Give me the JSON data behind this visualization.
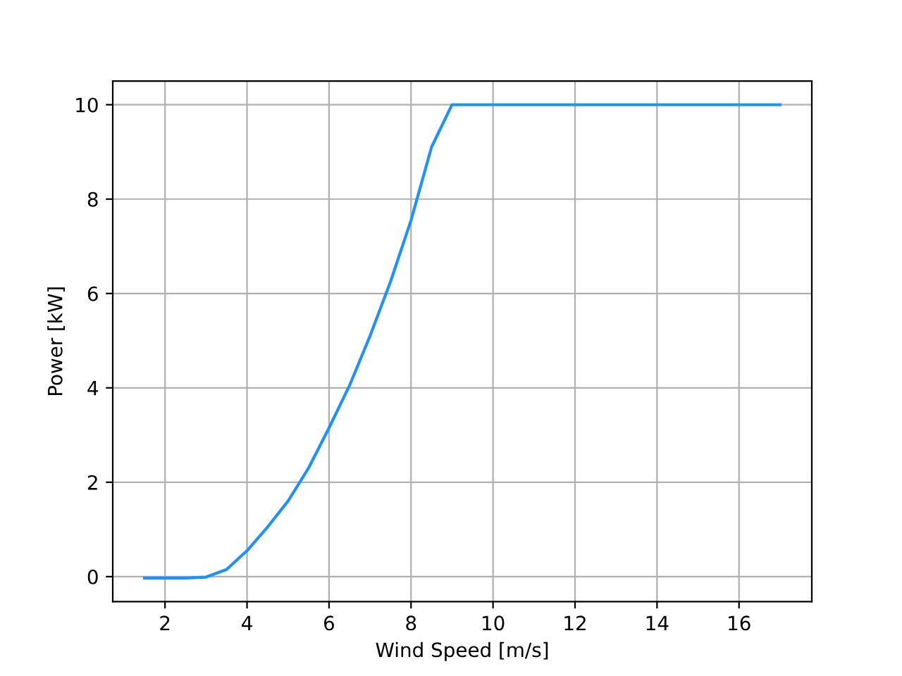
{
  "chart_data": {
    "type": "line",
    "xlabel": "Wind Speed [m/s]",
    "ylabel": "Power [kW]",
    "x": [
      1.5,
      2,
      2.5,
      3,
      3.5,
      4,
      4.5,
      5,
      5.5,
      6,
      6.5,
      7,
      7.5,
      8,
      8.5,
      9,
      10,
      11,
      12,
      13,
      14,
      15,
      16,
      17
    ],
    "series": [
      {
        "color": "#1e90ff",
        "values": [
          -0.03,
          -0.03,
          -0.03,
          -0.01,
          0.15,
          0.55,
          1.05,
          1.6,
          2.3,
          3.15,
          4.05,
          5.1,
          6.25,
          7.55,
          9.1,
          10,
          10,
          10,
          10,
          10,
          10,
          10,
          10,
          10
        ]
      }
    ],
    "xlim": [
      0.725,
      17.775
    ],
    "ylim": [
      -0.53,
      10.5
    ],
    "xticks": [
      2,
      4,
      6,
      8,
      10,
      12,
      14,
      16
    ],
    "yticks": [
      0,
      2,
      4,
      6,
      8,
      10
    ],
    "grid": true
  }
}
